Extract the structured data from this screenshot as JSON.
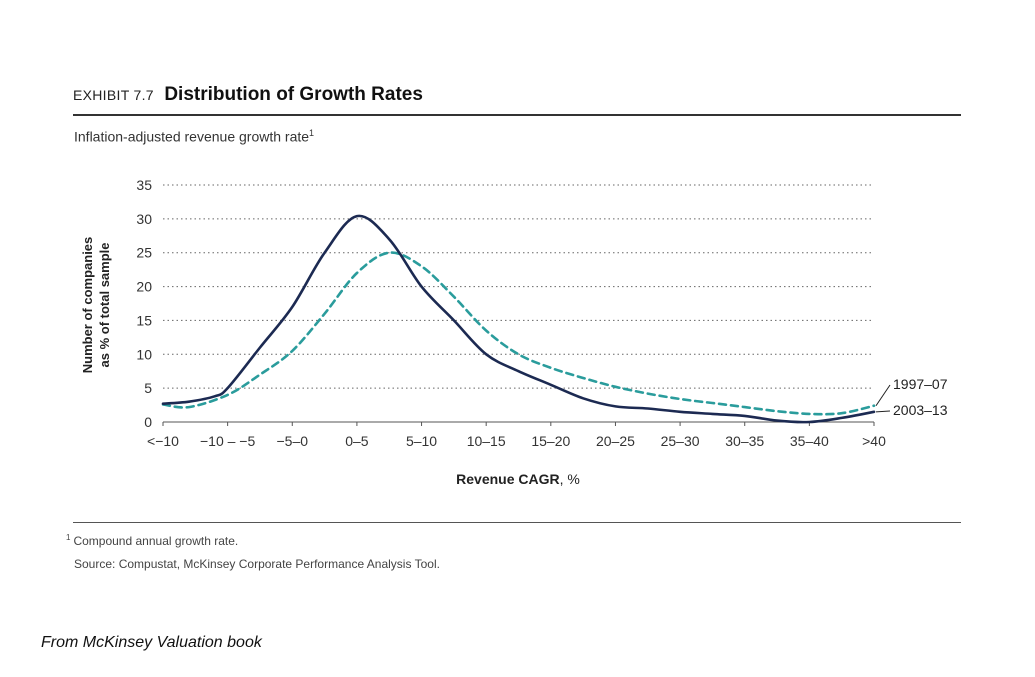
{
  "exhibit": {
    "number": "EXHIBIT 7.7",
    "title": "Distribution of Growth Rates",
    "subtitle": "Inflation-adjusted revenue growth rate",
    "subtitle_note": "1"
  },
  "footnote": {
    "marker": "1",
    "text": "Compound annual growth rate."
  },
  "source": "Source: Compustat, McKinsey Corporate Performance Analysis Tool.",
  "caption": "From McKinsey Valuation book",
  "colors": {
    "series_2003_13": "#1c2a52",
    "series_1997_07": "#2a9c9c",
    "grid": "#666666"
  },
  "chart_data": {
    "type": "line",
    "xlabel_bold": "Revenue CAGR",
    "xlabel_rest": ", %",
    "ylabel": [
      "Number of companies",
      "as % of total sample"
    ],
    "categories": [
      "<−10",
      "−10 – −5",
      "−5–0",
      "0–5",
      "5–10",
      "10–15",
      "15–20",
      "20–25",
      "25–30",
      "30–35",
      "35–40",
      ">40"
    ],
    "yticks": [
      0,
      5,
      10,
      15,
      20,
      25,
      30,
      35
    ],
    "ylim": [
      0,
      35
    ],
    "grid": true,
    "series": [
      {
        "name": "1997–07",
        "style": "dashed",
        "x": [
          0,
          0.4,
          1,
          1.5,
          2,
          2.5,
          3,
          3.5,
          4,
          4.5,
          5,
          5.5,
          6,
          6.5,
          7,
          7.5,
          8,
          8.5,
          9,
          9.5,
          10,
          10.5,
          11
        ],
        "y": [
          2.6,
          2.2,
          4.0,
          7.0,
          10.5,
          16.0,
          22.0,
          25.0,
          23.0,
          18.5,
          13.5,
          10.0,
          8.0,
          6.5,
          5.2,
          4.2,
          3.4,
          2.8,
          2.2,
          1.6,
          1.2,
          1.3,
          2.4
        ]
      },
      {
        "name": "2003–13",
        "style": "solid",
        "x": [
          0,
          0.4,
          0.8,
          1,
          1.5,
          2,
          2.5,
          3,
          3.5,
          4,
          4.5,
          5,
          5.5,
          6,
          6.5,
          7,
          7.5,
          8,
          8.5,
          9,
          9.5,
          10,
          10.5,
          11
        ],
        "y": [
          2.7,
          3.0,
          3.8,
          5.0,
          11.0,
          17.0,
          25.0,
          30.4,
          27.0,
          20.0,
          15.0,
          10.0,
          7.5,
          5.5,
          3.5,
          2.3,
          2.0,
          1.5,
          1.2,
          0.9,
          0.2,
          0.0,
          0.6,
          1.5
        ]
      }
    ]
  }
}
